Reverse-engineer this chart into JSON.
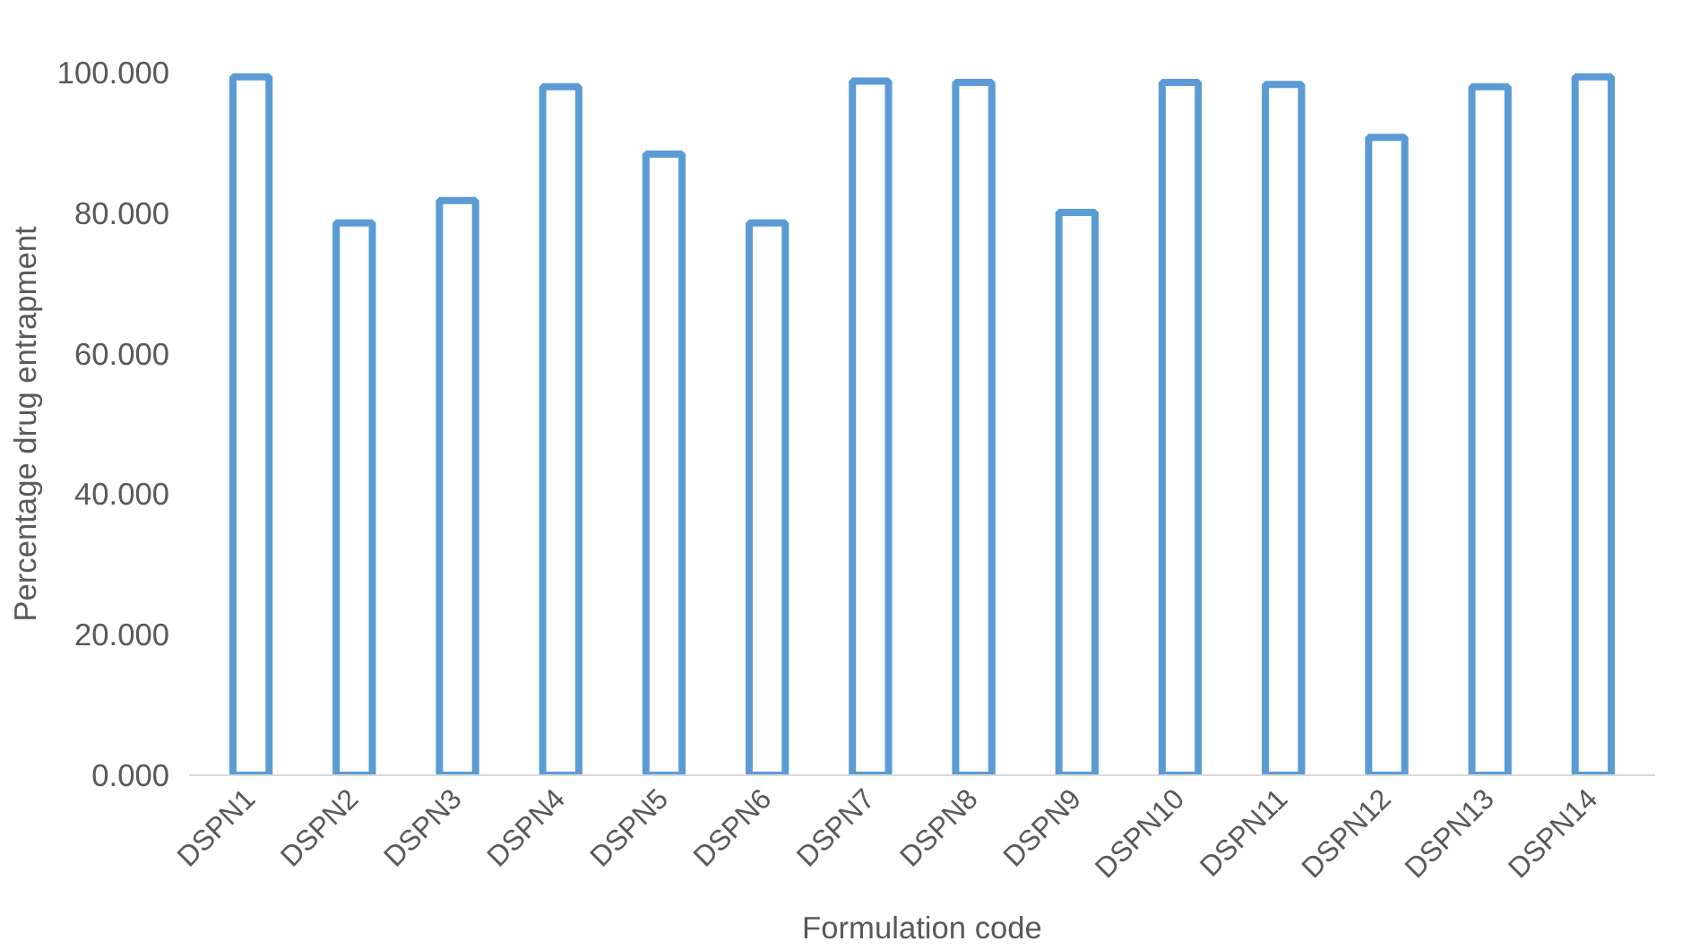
{
  "chart_data": {
    "type": "bar",
    "xlabel": "Formulation code",
    "ylabel": "Percentage drug entrapment",
    "categories": [
      "DSPN1",
      "DSPN2",
      "DSPN3",
      "DSPN4",
      "DSPN5",
      "DSPN6",
      "DSPN7",
      "DSPN8",
      "DSPN9",
      "DSPN10",
      "DSPN11",
      "DSPN12",
      "DSPN13",
      "DSPN14"
    ],
    "values": [
      99.4,
      78.6,
      81.8,
      98.0,
      88.4,
      78.6,
      98.8,
      98.6,
      80.1,
      98.6,
      98.3,
      90.8,
      98.0,
      99.4
    ],
    "color": "#5b9bd5",
    "ylim": [
      0,
      100
    ],
    "yticks": [
      {
        "value": 0,
        "label": "0.000"
      },
      {
        "value": 20,
        "label": "20.000"
      },
      {
        "value": 40,
        "label": "40.000"
      },
      {
        "value": 60,
        "label": "60.000"
      },
      {
        "value": 80,
        "label": "80.000"
      },
      {
        "value": 100,
        "label": "100.000"
      }
    ],
    "grid": false
  }
}
